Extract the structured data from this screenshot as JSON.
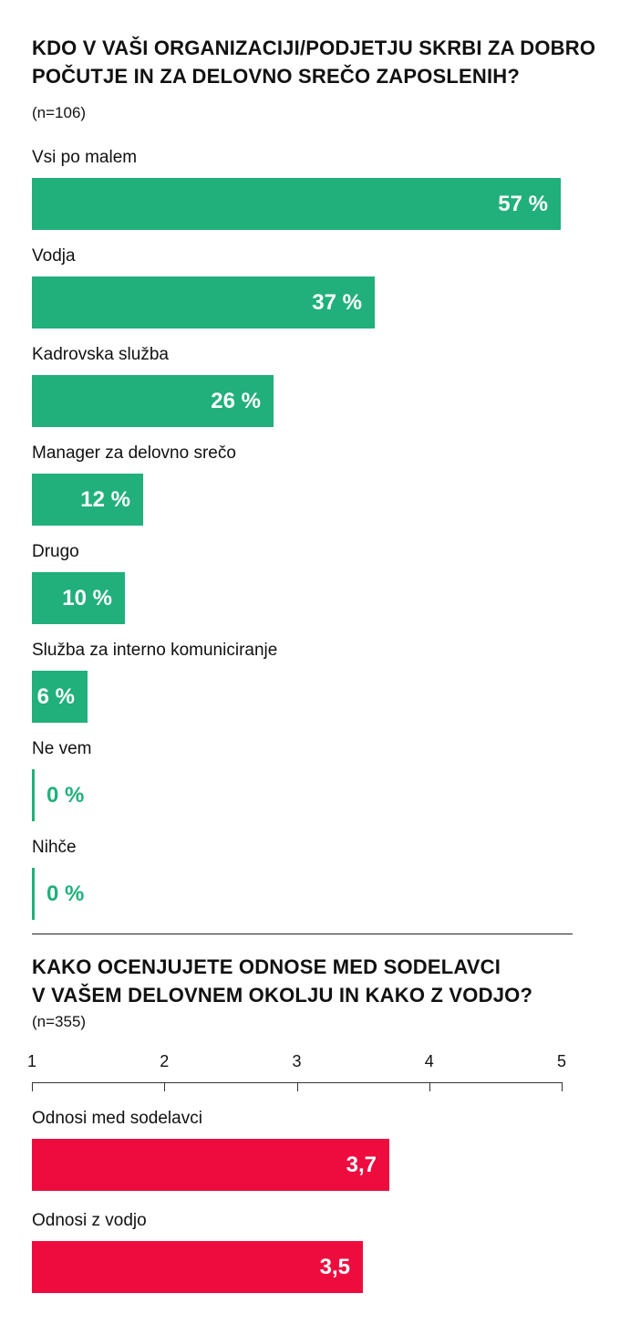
{
  "chart_data": [
    {
      "type": "bar",
      "orientation": "horizontal",
      "title_lines": [
        "KDO V VAŠI ORGANIZACIJI/PODJETJU SKRBI ZA DOBRO",
        "POČUTJE IN ZA  DELOVNO SREČO ZAPOSLENIH?"
      ],
      "subtitle": "(n=106)",
      "unit": "%",
      "xlim": [
        0,
        57
      ],
      "categories": [
        "Vsi po malem",
        "Vodja",
        "Kadrovska služba",
        "Manager za delovno srečo",
        "Drugo",
        "Služba za interno komuniciranje",
        "Ne vem",
        "Nihče"
      ],
      "values": [
        57,
        37,
        26,
        12,
        10,
        6,
        0,
        0
      ],
      "value_labels": [
        "57 %",
        "37 %",
        "26 %",
        "12 %",
        "10 %",
        "6 %",
        "0 %",
        "0 %"
      ],
      "color": "#21b07b"
    },
    {
      "type": "bar",
      "orientation": "horizontal",
      "title_lines": [
        "KAKO OCENJUJETE ODNOSE MED SODELAVCI",
        "V VAŠEM DELOVNEM OKOLJU IN KAKO Z VODJO?"
      ],
      "subtitle": "(n=355)",
      "xlim": [
        1,
        5
      ],
      "ticks": [
        "1",
        "2",
        "3",
        "4",
        "5"
      ],
      "categories": [
        "Odnosi med sodelavci",
        "Odnosi z vodjo"
      ],
      "values": [
        3.7,
        3.5
      ],
      "value_labels": [
        "3,7",
        "3,5"
      ],
      "color": "#ee0c3f"
    }
  ]
}
